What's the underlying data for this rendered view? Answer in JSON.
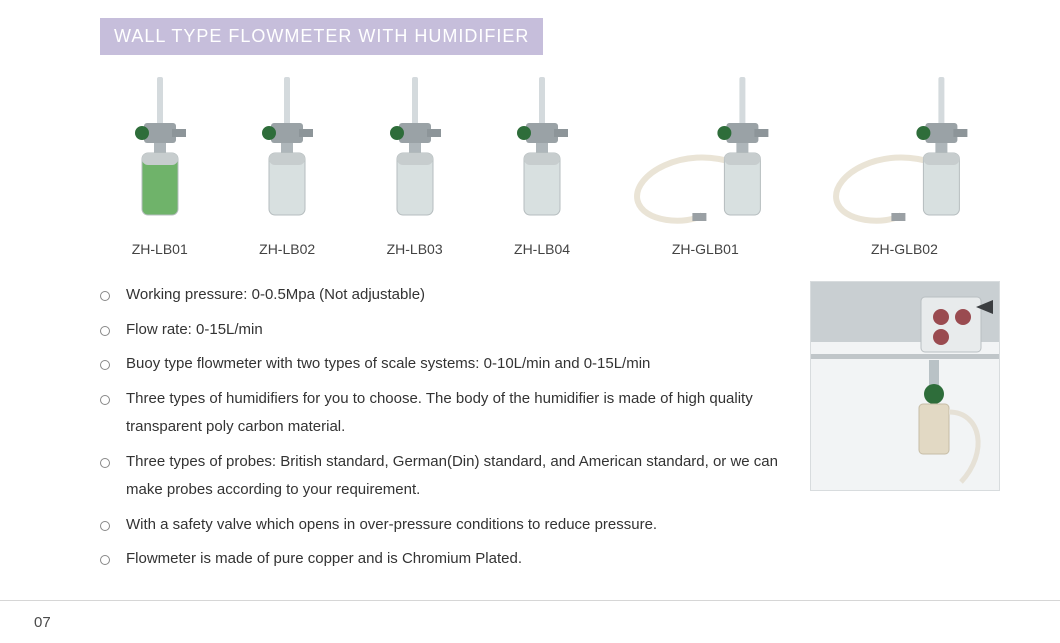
{
  "title": "WALL TYPE FLOWMETER WITH HUMIDIFIER",
  "title_bg": "#c6bedb",
  "title_color": "#ffffff",
  "products": [
    {
      "id": "ZH-LB01",
      "bottle_color": "#6fb36a",
      "has_hose": false
    },
    {
      "id": "ZH-LB02",
      "bottle_color": "#d8e0e0",
      "has_hose": false
    },
    {
      "id": "ZH-LB03",
      "bottle_color": "#d8e0e0",
      "has_hose": false
    },
    {
      "id": "ZH-LB04",
      "bottle_color": "#d8e0e0",
      "has_hose": false
    },
    {
      "id": "ZH-GLB01",
      "bottle_color": "#d8e0e0",
      "has_hose": true
    },
    {
      "id": "ZH-GLB02",
      "bottle_color": "#d8e0e0",
      "has_hose": true
    }
  ],
  "specs": [
    "Working pressure: 0-0.5Mpa (Not adjustable)",
    "Flow rate: 0-15L/min",
    "Buoy type flowmeter with two types of scale systems: 0-10L/min and 0-15L/min",
    "Three types of humidifiers for you to choose. The body of the humidifier is made of high quality transparent poly carbon material.",
    "Three types of probes: British standard, German(Din) standard, and American standard, or we can make probes according to your requirement.",
    "With a safety valve which opens in over-pressure conditions to reduce pressure.",
    "Flowmeter is made of pure copper and is Chromium Plated."
  ],
  "page_number": "07",
  "text_color": "#333333",
  "label_color": "#434343"
}
